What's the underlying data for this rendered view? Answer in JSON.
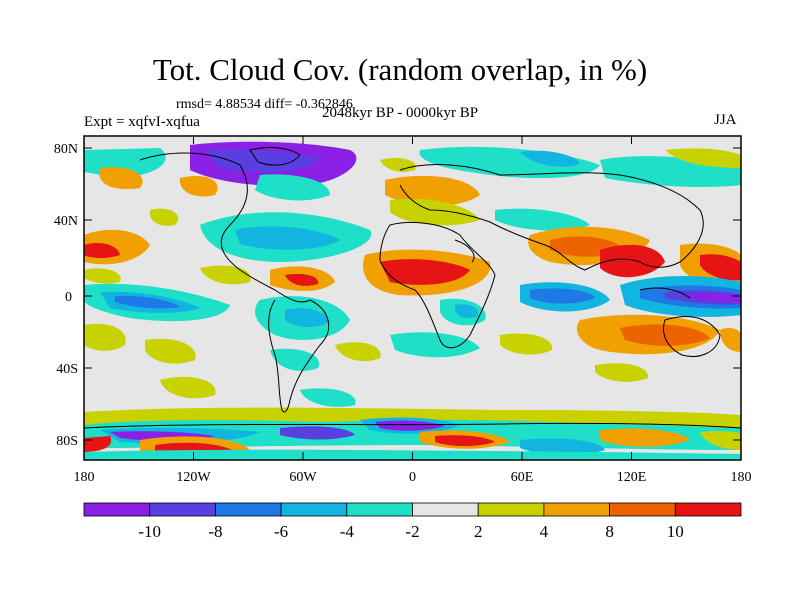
{
  "title": "Tot. Cloud Cov. (random overlap, in %)",
  "stats_line": "rmsd= 4.88534 diff= -0.362846",
  "experiment": "Expt = xqfvI-xqfua",
  "period": "2048kyr BP - 0000kyr BP",
  "season": "JJA",
  "lat_ticks": [
    "80N",
    "40N",
    "0",
    "40S",
    "80S"
  ],
  "lon_ticks": [
    "180",
    "120W",
    "60W",
    "0",
    "60E",
    "120E",
    "180"
  ],
  "colorbar": {
    "labels": [
      "-10",
      "-8",
      "-6",
      "-4",
      "-2",
      "2",
      "4",
      "8",
      "10"
    ],
    "colors": [
      "#8a1fe6",
      "#5a3fe0",
      "#1e78e6",
      "#12b4e0",
      "#1ee0c8",
      "#e6e6e6",
      "#c8d200",
      "#f0a000",
      "#ec6400",
      "#e61414"
    ]
  }
}
